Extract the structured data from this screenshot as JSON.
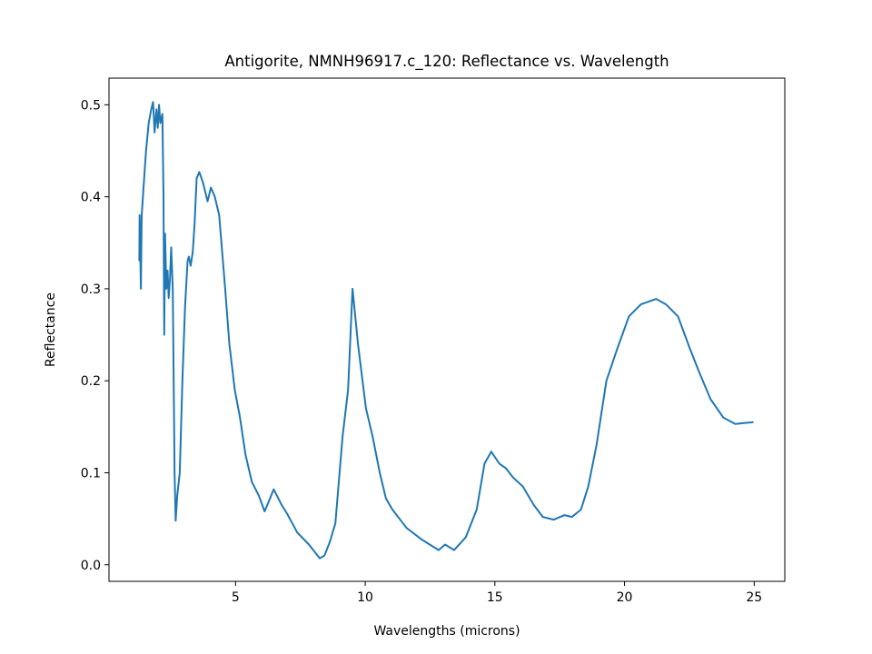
{
  "chart_data": {
    "type": "line",
    "title": "Antigorite, NMNH96917.c_120: Reflectance vs. Wavelength",
    "x_label": "Wavelengths (microns)",
    "y_label": "Reflectance",
    "xlim": [
      0.12,
      26.18
    ],
    "ylim": [
      -0.018,
      0.529
    ],
    "xticks": [
      5,
      10,
      15,
      20,
      25
    ],
    "yticks": [
      0.0,
      0.1,
      0.2,
      0.3,
      0.4,
      0.5
    ],
    "series": [
      {
        "color": "#1f77b4",
        "x": [
          1.29,
          1.3,
          1.35,
          1.38,
          1.45,
          1.55,
          1.65,
          1.75,
          1.82,
          1.88,
          1.95,
          2.0,
          2.05,
          2.1,
          2.18,
          2.22,
          2.25,
          2.28,
          2.33,
          2.38,
          2.42,
          2.47,
          2.52,
          2.58,
          2.65,
          2.69,
          2.75,
          2.85,
          2.95,
          3.05,
          3.15,
          3.2,
          3.27,
          3.35,
          3.42,
          3.5,
          3.6,
          3.75,
          3.92,
          4.05,
          4.2,
          4.37,
          4.6,
          4.76,
          4.97,
          5.17,
          5.38,
          5.63,
          5.9,
          6.12,
          6.3,
          6.47,
          6.78,
          7.0,
          7.38,
          7.83,
          8.25,
          8.43,
          8.64,
          8.85,
          9.13,
          9.34,
          9.51,
          9.72,
          10.03,
          10.28,
          10.56,
          10.8,
          11.05,
          11.6,
          12.2,
          12.83,
          13.08,
          13.43,
          13.88,
          14.3,
          14.6,
          14.86,
          15.17,
          15.42,
          15.7,
          16.08,
          16.5,
          16.85,
          17.27,
          17.69,
          17.97,
          18.32,
          18.6,
          18.92,
          19.3,
          19.72,
          20.17,
          20.63,
          21.22,
          21.6,
          22.06,
          22.52,
          22.87,
          23.32,
          23.81,
          24.27,
          24.6,
          24.97
        ],
        "values": [
          0.33,
          0.38,
          0.3,
          0.38,
          0.41,
          0.45,
          0.48,
          0.495,
          0.503,
          0.47,
          0.495,
          0.475,
          0.5,
          0.48,
          0.49,
          0.4,
          0.25,
          0.36,
          0.3,
          0.32,
          0.29,
          0.31,
          0.345,
          0.3,
          0.1,
          0.048,
          0.075,
          0.1,
          0.2,
          0.28,
          0.33,
          0.335,
          0.325,
          0.34,
          0.37,
          0.42,
          0.427,
          0.415,
          0.395,
          0.41,
          0.4,
          0.38,
          0.3,
          0.24,
          0.19,
          0.16,
          0.12,
          0.09,
          0.075,
          0.058,
          0.07,
          0.082,
          0.065,
          0.055,
          0.035,
          0.022,
          0.007,
          0.01,
          0.025,
          0.045,
          0.14,
          0.19,
          0.3,
          0.24,
          0.17,
          0.14,
          0.1,
          0.072,
          0.06,
          0.04,
          0.027,
          0.016,
          0.022,
          0.016,
          0.03,
          0.06,
          0.11,
          0.123,
          0.11,
          0.105,
          0.095,
          0.085,
          0.065,
          0.052,
          0.049,
          0.054,
          0.052,
          0.06,
          0.085,
          0.13,
          0.2,
          0.235,
          0.27,
          0.283,
          0.289,
          0.283,
          0.27,
          0.235,
          0.21,
          0.18,
          0.16,
          0.153,
          0.154,
          0.155
        ]
      }
    ]
  }
}
